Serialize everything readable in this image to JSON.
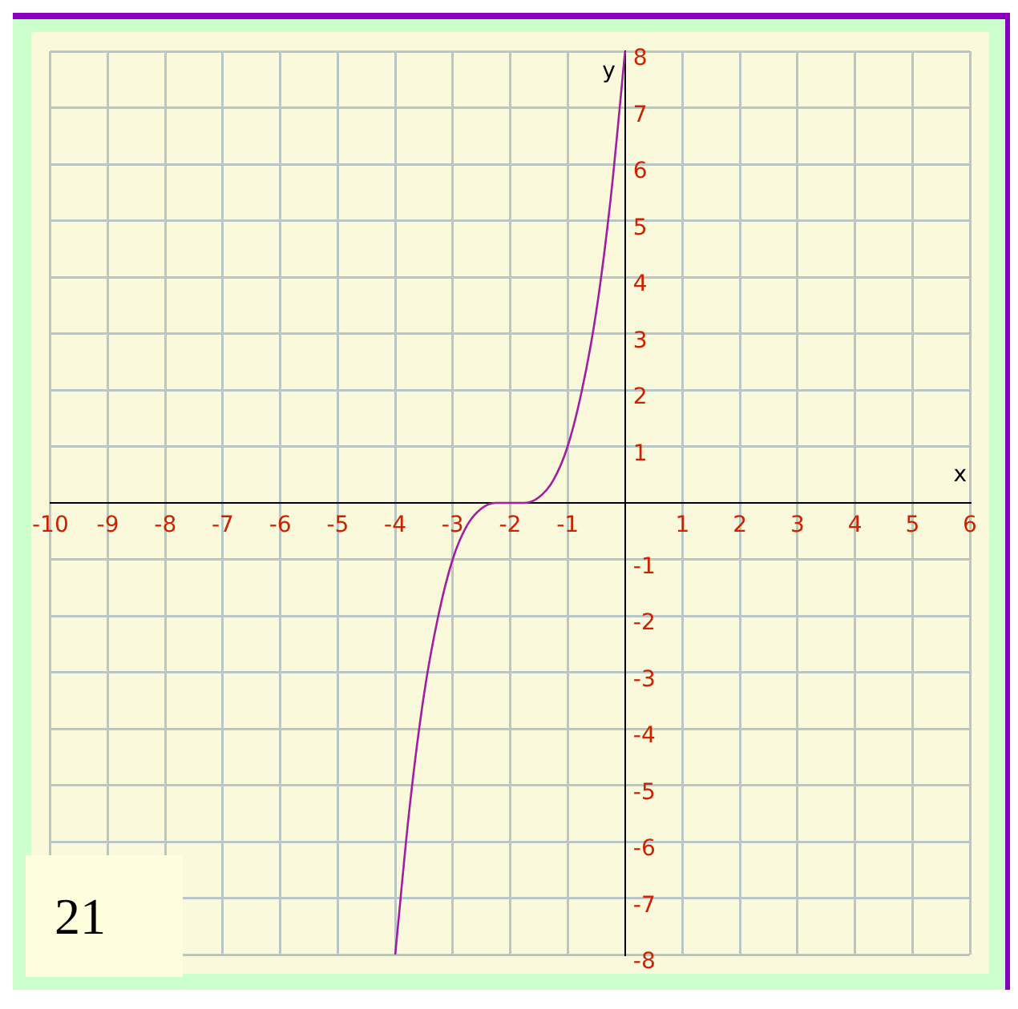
{
  "chart_data": {
    "type": "line",
    "xlabel": "x",
    "ylabel": "y",
    "x": [
      -4,
      -3.75,
      -3.5,
      -3.25,
      -3,
      -2.75,
      -2.5,
      -2.25,
      -2,
      -1.75,
      -1.5,
      -1.25,
      -1,
      -0.75,
      -0.5,
      -0.25,
      0
    ],
    "series": [
      {
        "color": "#a020a0",
        "values": [
          -8,
          -5.4,
          -3.4,
          -2,
          -1,
          -0.4,
          -0.1,
          0,
          0,
          0,
          0.1,
          0.4,
          1,
          2,
          3.4,
          5.4,
          8
        ]
      }
    ],
    "xlim": [
      -10,
      6
    ],
    "xticks": [
      -10,
      -9,
      -8,
      -7,
      -6,
      -5,
      -4,
      -3,
      -2,
      -1,
      1,
      2,
      3,
      4,
      5,
      6
    ],
    "ylim": [
      -8,
      8
    ],
    "yticks": [
      -8,
      -7,
      -6,
      -5,
      -4,
      -3,
      -2,
      -1,
      1,
      2,
      3,
      4,
      5,
      6,
      7,
      8
    ],
    "grid": true,
    "legend": false,
    "marker": "none",
    "line_style": "solid",
    "annotations": [
      "21"
    ]
  }
}
